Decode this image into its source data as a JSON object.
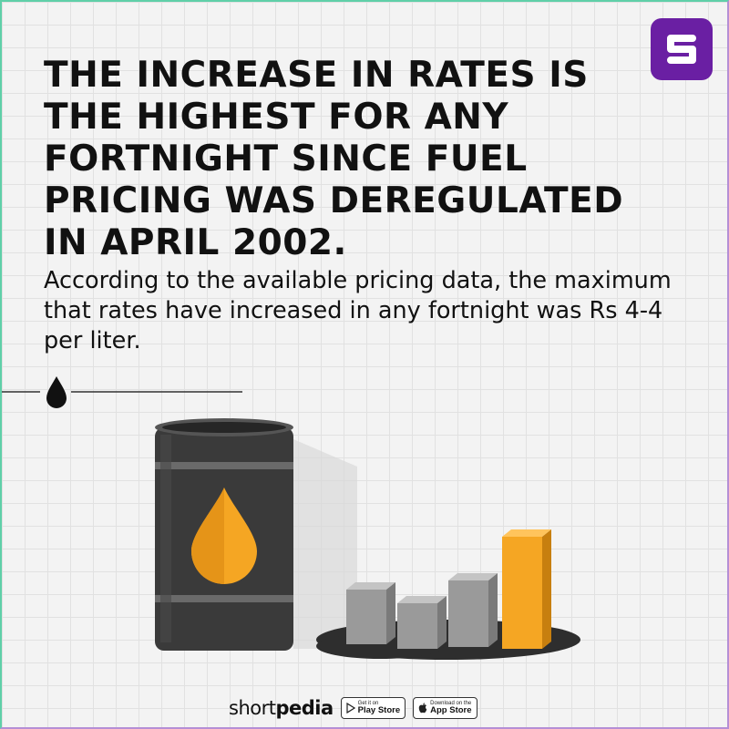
{
  "headline": "THE INCREASE IN RATES IS THE HIGHEST FOR ANY FORTNIGHT SINCE FUEL PRICING WAS DEREGULATED IN APRIL 2002.",
  "subtext": "According to the available pricing data, the maximum that rates have increased in any fortnight was Rs 4-4 per liter.",
  "logo_icon": "shortpedia-s-icon",
  "divider_icon": "oil-drop-icon",
  "illustration": {
    "barrel_icon": "oil-barrel-icon",
    "bars_icon": "bar-blocks-icon",
    "colors": {
      "barrel": "#333333",
      "drop": "#f5a623",
      "bar_gray": "#9a9a9a",
      "bar_highlight": "#f5a623"
    }
  },
  "footer": {
    "brand_regular": "short",
    "brand_bold": "pedia",
    "play_store": {
      "small": "Get it on",
      "big": "Play Store",
      "icon": "play-store-icon"
    },
    "app_store": {
      "small": "Download on the",
      "big": "App Store",
      "icon": "apple-icon"
    }
  },
  "colors": {
    "brand_purple": "#6a1fa3",
    "text": "#111111",
    "grid": "#e1e1e1",
    "background": "#f3f3f3"
  }
}
